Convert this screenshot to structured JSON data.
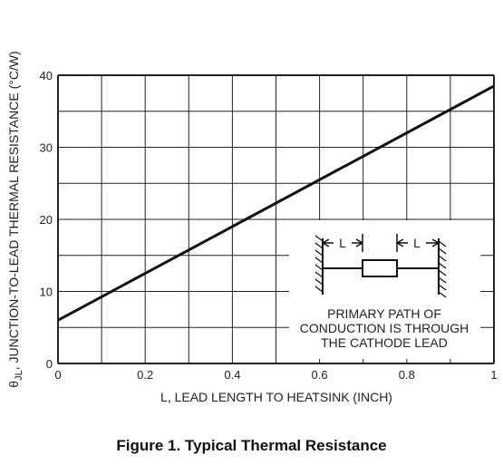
{
  "figure_caption": "Figure 1. Typical Thermal Resistance",
  "chart_data": {
    "type": "line",
    "xlabel": "L, LEAD LENGTH TO HEATSINK (INCH)",
    "ylabel_symbol": "θ",
    "ylabel_subscript": "JL",
    "ylabel": ", JUNCTION-TO-LEAD THERMAL RESISTANCE (°C/W)",
    "xlim": [
      0,
      1
    ],
    "ylim": [
      0,
      40
    ],
    "grid": true,
    "x_ticks": [
      0,
      0.2,
      0.4,
      0.6,
      0.8,
      1
    ],
    "x_tick_labels": [
      "0",
      "0.2",
      "0.4",
      "0.6",
      "0.8",
      "1"
    ],
    "y_ticks": [
      0,
      10,
      20,
      30,
      40
    ],
    "y_tick_labels": [
      "0",
      "10",
      "20",
      "30",
      "40"
    ],
    "series": [
      {
        "x": [
          0,
          1
        ],
        "y": [
          6,
          38.5
        ]
      }
    ],
    "inset": {
      "dimension_label": "L",
      "note_lines": [
        "PRIMARY PATH OF",
        "CONDUCTION IS THROUGH",
        "THE CATHODE LEAD"
      ]
    }
  }
}
